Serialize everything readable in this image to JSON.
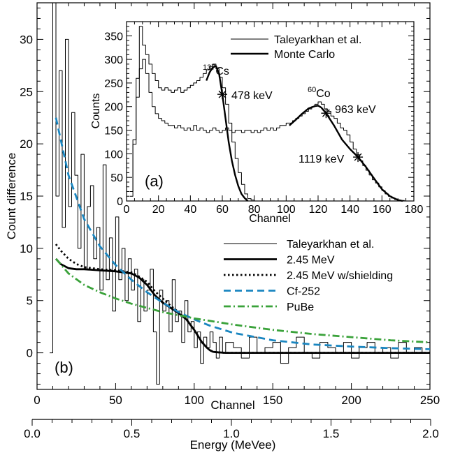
{
  "chart_data": [
    {
      "panel": "(b)",
      "type": "line",
      "xlabel": "Channel",
      "ylabel": "Count difference",
      "xlim": [
        0,
        250
      ],
      "ylim": [
        -3.5,
        33.5
      ],
      "xticks": [
        0,
        50,
        100,
        150,
        200,
        250
      ],
      "yticks": [
        0,
        5,
        10,
        15,
        20,
        25,
        30
      ],
      "secondary_xaxis": {
        "label": "Energy (MeVee)",
        "xlim": [
          0.0,
          2.0
        ],
        "ticks": [
          "0.0",
          "0.5",
          "1.0",
          "1.5",
          "2.0"
        ],
        "tick_values": [
          0.0,
          0.5,
          1.0,
          1.5,
          2.0
        ]
      },
      "legend_position": "right",
      "series": [
        {
          "name": "Taleyarkhan et al.",
          "style": "histogram",
          "color": "#000000",
          "x": [
            8,
            10,
            12,
            14,
            16,
            18,
            20,
            22,
            24,
            26,
            28,
            30,
            32,
            34,
            36,
            38,
            40,
            42,
            44,
            46,
            48,
            50,
            52,
            54,
            56,
            58,
            60,
            62,
            64,
            66,
            68,
            70,
            72,
            74,
            76,
            78,
            80,
            82,
            84,
            86,
            88,
            90,
            92,
            94,
            96,
            98,
            100,
            102,
            104,
            106,
            108,
            110,
            112,
            114,
            116,
            118,
            120,
            125,
            130,
            135,
            140,
            145,
            150,
            155,
            160,
            165,
            170,
            175,
            180,
            185,
            190,
            195,
            200,
            205,
            210,
            215,
            220,
            225,
            230,
            235,
            240,
            245
          ],
          "y": [
            0,
            33.5,
            15,
            27,
            12,
            30,
            14,
            23,
            17,
            10,
            19,
            8,
            14,
            16,
            9,
            12,
            6,
            18,
            7,
            11,
            4,
            13,
            7,
            10,
            5,
            9,
            6,
            8,
            3,
            7,
            4,
            6,
            8,
            2,
            -3,
            6,
            4,
            5,
            2,
            7,
            3,
            4,
            1,
            5,
            2,
            3,
            0.5,
            2,
            -1,
            1.5,
            0.5,
            2,
            1,
            -0.5,
            1.5,
            0,
            1,
            0.5,
            -0.5,
            1.5,
            0,
            0.5,
            1,
            -1,
            0.5,
            1.5,
            0,
            -0.5,
            1,
            0.5,
            0,
            1,
            -0.5,
            0.5,
            1,
            0,
            0.5,
            -0.5,
            1,
            0,
            0.5,
            0
          ]
        },
        {
          "name": "2.45 MeV",
          "style": "solid",
          "color": "#000000",
          "x": [
            12,
            15,
            20,
            25,
            30,
            40,
            50,
            60,
            65,
            70,
            75,
            80,
            85,
            90,
            95,
            100,
            105,
            108,
            110,
            112,
            115,
            120,
            150,
            200,
            250
          ],
          "y": [
            9.0,
            8.5,
            8.1,
            8.0,
            8.0,
            7.9,
            7.8,
            7.6,
            7.2,
            6.5,
            5.5,
            4.8,
            4.3,
            3.8,
            3.2,
            2.2,
            1.0,
            0.5,
            0.25,
            0.1,
            0.05,
            0.0,
            0.0,
            0.0,
            0.0
          ]
        },
        {
          "name": "2.45 MeV w/shielding",
          "style": "dotted",
          "color": "#000000",
          "x": [
            12,
            15,
            20,
            25,
            30,
            40,
            50,
            60,
            65,
            70,
            75,
            80,
            85,
            90,
            95,
            100,
            105,
            108,
            110,
            112,
            115,
            120,
            150,
            200,
            250
          ],
          "y": [
            10.4,
            9.8,
            9.0,
            8.5,
            8.2,
            8.0,
            7.9,
            7.7,
            7.3,
            6.8,
            5.9,
            5.2,
            4.5,
            3.9,
            3.2,
            2.2,
            1.0,
            0.5,
            0.25,
            0.1,
            0.05,
            0.0,
            0.0,
            0.0,
            0.0
          ]
        },
        {
          "name": "Cf-252",
          "style": "dashed",
          "color": "#1a86c0",
          "x": [
            12,
            20,
            30,
            40,
            50,
            60,
            70,
            80,
            90,
            100,
            110,
            125,
            150,
            175,
            200,
            225,
            250
          ],
          "y": [
            22.5,
            17.0,
            12.8,
            10.2,
            8.4,
            7.0,
            5.8,
            4.8,
            3.9,
            3.2,
            2.6,
            1.9,
            1.2,
            0.8,
            0.6,
            0.45,
            0.35
          ]
        },
        {
          "name": "PuBe",
          "style": "dash-dot",
          "color": "#3aa23a",
          "x": [
            12,
            20,
            30,
            40,
            50,
            60,
            70,
            80,
            90,
            100,
            125,
            150,
            175,
            200,
            225,
            250
          ],
          "y": [
            9.0,
            7.6,
            6.5,
            5.8,
            5.2,
            4.7,
            4.3,
            3.9,
            3.6,
            3.3,
            2.7,
            2.2,
            1.8,
            1.5,
            1.2,
            1.0
          ]
        }
      ]
    },
    {
      "panel": "(a)",
      "type": "line",
      "xlabel": "Channel",
      "ylabel": "Counts",
      "xlim": [
        0,
        180
      ],
      "ylim": [
        0,
        380
      ],
      "xticks": [
        0,
        20,
        40,
        60,
        80,
        100,
        120,
        140,
        160,
        180
      ],
      "yticks": [
        0,
        50,
        100,
        150,
        200,
        250,
        300,
        350
      ],
      "legend_position": "top-right",
      "series": [
        {
          "name": "Taleyarkhan et al.",
          "style": "histogram",
          "color": "#000000",
          "x": [
            2,
            4,
            6,
            8,
            10,
            12,
            14,
            16,
            18,
            20,
            22,
            24,
            26,
            28,
            30,
            32,
            34,
            36,
            38,
            40,
            42,
            44,
            46,
            48,
            50,
            52,
            54,
            56,
            58,
            60,
            62,
            64,
            66,
            68,
            70,
            72,
            74,
            76,
            78,
            80
          ],
          "y": [
            20,
            130,
            260,
            370,
            330,
            310,
            290,
            270,
            255,
            240,
            235,
            240,
            235,
            230,
            235,
            240,
            230,
            235,
            240,
            245,
            250,
            255,
            262,
            270,
            278,
            285,
            290,
            280,
            262,
            240,
            205,
            165,
            125,
            90,
            60,
            35,
            15,
            5,
            2,
            0
          ]
        },
        {
          "name": "Taleyarkhan et al.",
          "style": "histogram",
          "color": "#000000",
          "x": [
            2,
            4,
            6,
            8,
            10,
            12,
            14,
            16,
            18,
            20,
            22,
            24,
            26,
            28,
            30,
            32,
            34,
            36,
            38,
            40,
            42,
            44,
            46,
            48,
            50,
            52,
            54,
            56,
            58,
            60,
            62,
            64,
            66,
            68,
            70,
            72,
            74,
            76,
            78,
            80,
            82,
            84,
            86,
            88,
            90,
            92,
            94,
            96,
            98,
            100,
            102,
            104,
            106,
            108,
            110,
            112,
            114,
            116,
            118,
            120,
            122,
            124,
            126,
            128,
            130,
            132,
            134,
            136,
            138,
            140,
            142,
            144,
            146,
            148,
            150,
            152,
            154,
            156,
            158,
            160,
            162,
            164,
            166,
            168,
            170,
            172,
            174
          ],
          "y": [
            10,
            120,
            220,
            280,
            300,
            270,
            230,
            200,
            185,
            175,
            170,
            165,
            160,
            160,
            155,
            160,
            155,
            150,
            155,
            150,
            160,
            150,
            155,
            150,
            145,
            150,
            155,
            150,
            145,
            150,
            155,
            150,
            145,
            150,
            150,
            145,
            150,
            150,
            145,
            150,
            145,
            150,
            155,
            150,
            155,
            150,
            155,
            160,
            160,
            165,
            165,
            170,
            175,
            180,
            185,
            190,
            195,
            200,
            205,
            210,
            205,
            195,
            190,
            180,
            175,
            165,
            155,
            150,
            140,
            125,
            110,
            98,
            85,
            75,
            65,
            55,
            45,
            38,
            30,
            22,
            15,
            10,
            6,
            3,
            2,
            1,
            0
          ]
        },
        {
          "name": "Monte Carlo",
          "style": "solid",
          "color": "#000000",
          "x": [
            50,
            52,
            54,
            56,
            58,
            60,
            62,
            64,
            66,
            68,
            70,
            72,
            74,
            76
          ],
          "y": [
            255,
            272,
            283,
            286,
            270,
            226,
            175,
            125,
            85,
            55,
            32,
            15,
            6,
            0
          ]
        },
        {
          "name": "Monte Carlo",
          "style": "solid",
          "color": "#000000",
          "x": [
            102,
            106,
            110,
            114,
            118,
            120,
            122,
            125,
            130,
            135,
            140,
            145,
            150,
            155,
            160,
            165,
            170,
            173
          ],
          "y": [
            160,
            172,
            185,
            196,
            201,
            202,
            198,
            186,
            160,
            130,
            110,
            93,
            72,
            48,
            25,
            10,
            2,
            0
          ]
        }
      ],
      "markers": [
        {
          "x": 60,
          "y": 226
        },
        {
          "x": 125,
          "y": 186
        },
        {
          "x": 145,
          "y": 93
        }
      ],
      "annotations": [
        {
          "sup": "137",
          "main": "Cs"
        },
        {
          "text": "478 keV"
        },
        {
          "sup": "60",
          "main": "Co"
        },
        {
          "text": "963 keV"
        },
        {
          "text": "1119 keV"
        }
      ]
    }
  ]
}
